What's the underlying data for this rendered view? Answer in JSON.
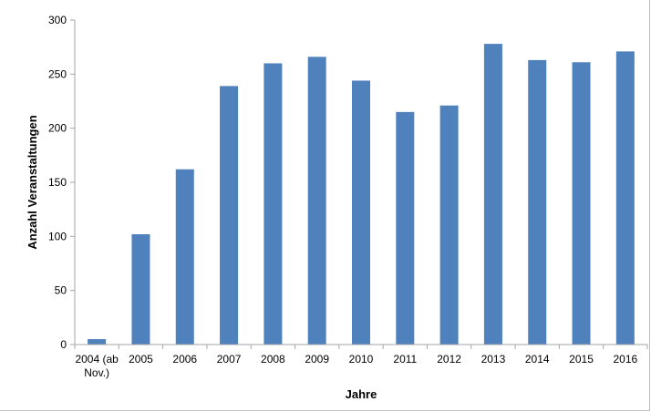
{
  "chart_data": {
    "type": "bar",
    "title": "",
    "xlabel": "Jahre",
    "ylabel": "Anzahl Veranstaltungen",
    "categories": [
      "2004 (ab Nov.)",
      "2005",
      "2006",
      "2007",
      "2008",
      "2009",
      "2010",
      "2011",
      "2012",
      "2013",
      "2014",
      "2015",
      "2016"
    ],
    "category_lines": [
      [
        "2004 (ab",
        "Nov.)"
      ],
      [
        "2005"
      ],
      [
        "2006"
      ],
      [
        "2007"
      ],
      [
        "2008"
      ],
      [
        "2009"
      ],
      [
        "2010"
      ],
      [
        "2011"
      ],
      [
        "2012"
      ],
      [
        "2013"
      ],
      [
        "2014"
      ],
      [
        "2015"
      ],
      [
        "2016"
      ]
    ],
    "values": [
      5,
      102,
      162,
      239,
      260,
      266,
      244,
      215,
      221,
      278,
      263,
      261,
      271
    ],
    "ylim": [
      0,
      300
    ],
    "yticks": [
      0,
      50,
      100,
      150,
      200,
      250,
      300
    ],
    "grid": false,
    "legend": "none",
    "bar_color": "#4f81bd",
    "axis_color": "#a6a6a6"
  }
}
